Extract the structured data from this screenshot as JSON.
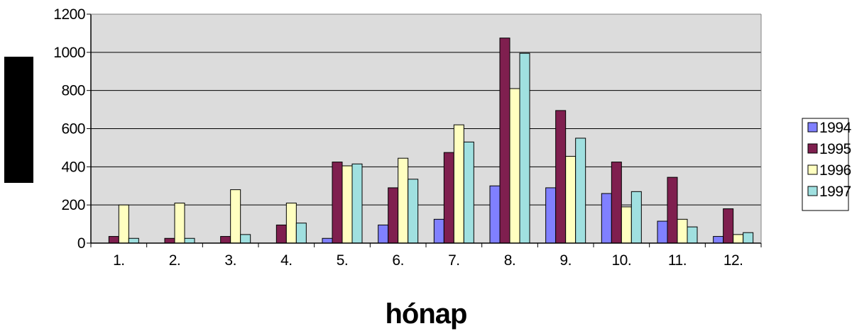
{
  "chart_data": {
    "type": "bar",
    "title": "",
    "xlabel": "hónap",
    "ylabel": "",
    "ylim": [
      0,
      1200
    ],
    "yticks": [
      0,
      200,
      400,
      600,
      800,
      1000,
      1200
    ],
    "grid": true,
    "legend_position": "right",
    "categories": [
      "1.",
      "2.",
      "3.",
      "4.",
      "5.",
      "6.",
      "7.",
      "8.",
      "9.",
      "10.",
      "11.",
      "12."
    ],
    "series": [
      {
        "name": "1994.",
        "color": "#8080ff",
        "values": [
          0,
          0,
          0,
          0,
          25,
          95,
          125,
          300,
          290,
          260,
          115,
          35
        ]
      },
      {
        "name": "1995.",
        "color": "#7f1f4f",
        "values": [
          35,
          25,
          35,
          95,
          425,
          290,
          475,
          1075,
          695,
          425,
          345,
          180
        ]
      },
      {
        "name": "1996.",
        "color": "#ffffc0",
        "values": [
          200,
          210,
          280,
          210,
          405,
          445,
          620,
          810,
          455,
          190,
          125,
          45
        ]
      },
      {
        "name": "1997.",
        "color": "#a0e0e0",
        "values": [
          25,
          25,
          45,
          105,
          415,
          335,
          530,
          995,
          550,
          270,
          85,
          55
        ]
      }
    ]
  }
}
